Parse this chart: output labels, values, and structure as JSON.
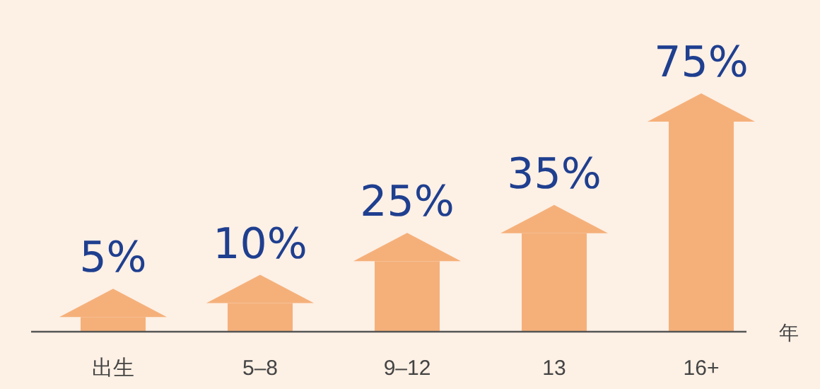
{
  "chart_data": {
    "type": "bar",
    "categories": [
      "出生",
      "5–8",
      "9–12",
      "13",
      "16+"
    ],
    "values": [
      5,
      10,
      25,
      35,
      75
    ],
    "value_labels": [
      "5%",
      "10%",
      "25%",
      "35%",
      "75%"
    ],
    "color": "#f5b07a",
    "xlabel": "年"
  }
}
